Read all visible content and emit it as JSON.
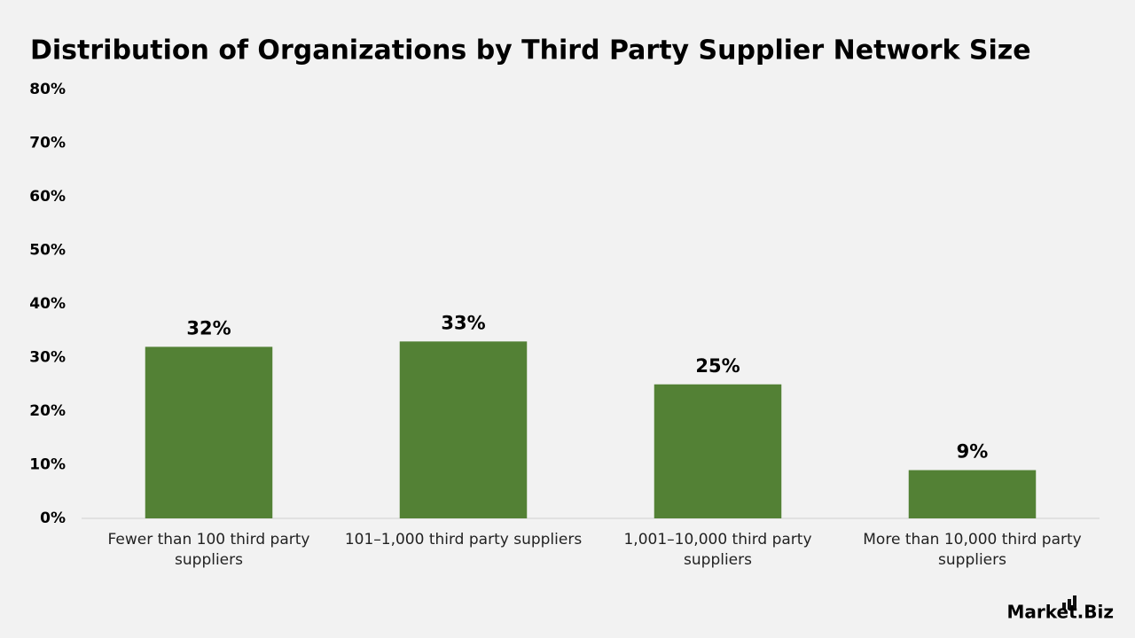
{
  "chart_data": {
    "type": "bar",
    "title": "Distribution of Organizations by Third Party Supplier Network Size",
    "categories": [
      "Fewer than 100 third party suppliers",
      "101–1,000 third party suppliers",
      "1,001–10,000 third party suppliers",
      "More than 10,000 third party suppliers"
    ],
    "values": [
      32,
      33,
      25,
      9
    ],
    "value_labels": [
      "32%",
      "33%",
      "25%",
      "9%"
    ],
    "color": "#538135",
    "ylim": [
      0,
      80
    ],
    "yticks": [
      {
        "value": 0,
        "label": "0%"
      },
      {
        "value": 10,
        "label": "10%"
      },
      {
        "value": 20,
        "label": "20%"
      },
      {
        "value": 30,
        "label": "30%"
      },
      {
        "value": 40,
        "label": "40%"
      },
      {
        "value": 50,
        "label": "50%"
      },
      {
        "value": 60,
        "label": "60%"
      },
      {
        "value": 70,
        "label": "70%"
      },
      {
        "value": 80,
        "label": "80%"
      }
    ],
    "grid": false
  },
  "logo": "Market.Biz"
}
